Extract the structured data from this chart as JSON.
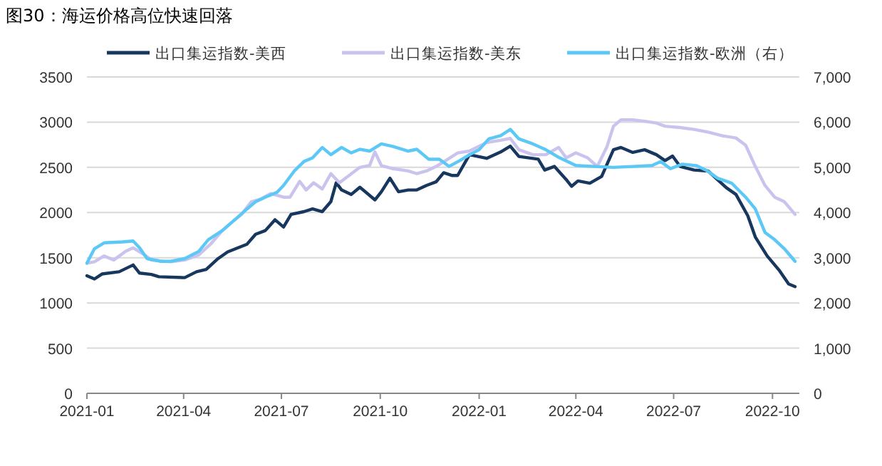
{
  "chart_data": {
    "type": "line",
    "title": "图30：海运价格高位快速回落",
    "legend": "top",
    "grid": "y",
    "xlim": [
      "2021-01-01",
      "2022-10-26"
    ],
    "xticks": [
      "2021-01",
      "2021-04",
      "2021-07",
      "2021-10",
      "2022-01",
      "2022-04",
      "2022-07",
      "2022-10"
    ],
    "ylim": [
      0,
      3500
    ],
    "yticks": [
      0,
      500,
      1000,
      1500,
      2000,
      2500,
      3000,
      3500
    ],
    "y2lim": [
      0,
      7000
    ],
    "y2ticks": [
      0,
      {
        "value": 1000,
        "label": "1,000"
      },
      {
        "value": 2000,
        "label": "2,000"
      },
      {
        "value": 3000,
        "label": "3,000"
      },
      {
        "value": 4000,
        "label": "4,000"
      },
      {
        "value": 5000,
        "label": "5,000"
      },
      {
        "value": 6000,
        "label": "6,000"
      },
      {
        "value": 7000,
        "label": "7,000"
      }
    ],
    "series": [
      {
        "name": "出口集运指数-美西",
        "color": "#17375e",
        "x": [
          "2021-01-01",
          "2021-01-08",
          "2021-01-15",
          "2021-01-31",
          "2021-02-13",
          "2021-02-19",
          "2021-03-02",
          "2021-03-09",
          "2021-04-02",
          "2021-04-13",
          "2021-04-22",
          "2021-05-03",
          "2021-05-12",
          "2021-05-30",
          "2021-06-07",
          "2021-06-16",
          "2021-06-25",
          "2021-07-03",
          "2021-07-10",
          "2021-07-22",
          "2021-07-30",
          "2021-08-08",
          "2021-08-16",
          "2021-08-21",
          "2021-08-26",
          "2021-09-04",
          "2021-09-12",
          "2021-09-26",
          "2021-10-02",
          "2021-10-10",
          "2021-10-18",
          "2021-10-27",
          "2021-11-04",
          "2021-11-13",
          "2021-11-22",
          "2021-11-29",
          "2021-12-07",
          "2021-12-12",
          "2021-12-23",
          "2022-01-08",
          "2022-01-21",
          "2022-01-30",
          "2022-02-07",
          "2022-02-25",
          "2022-03-03",
          "2022-03-12",
          "2022-03-23",
          "2022-03-28",
          "2022-04-03",
          "2022-04-14",
          "2022-04-25",
          "2022-05-06",
          "2022-05-13",
          "2022-05-24",
          "2022-06-04",
          "2022-06-15",
          "2022-06-23",
          "2022-06-30",
          "2022-07-07",
          "2022-07-20",
          "2022-08-02",
          "2022-08-19",
          "2022-08-28",
          "2022-09-08",
          "2022-09-15",
          "2022-09-26",
          "2022-10-07",
          "2022-10-16",
          "2022-10-22"
        ],
        "values": [
          1300,
          1265,
          1320,
          1345,
          1420,
          1330,
          1315,
          1290,
          1280,
          1345,
          1370,
          1490,
          1565,
          1650,
          1760,
          1800,
          1920,
          1840,
          1980,
          2010,
          2040,
          2010,
          2120,
          2330,
          2250,
          2200,
          2280,
          2140,
          2230,
          2380,
          2230,
          2250,
          2250,
          2300,
          2340,
          2440,
          2410,
          2410,
          2640,
          2600,
          2670,
          2735,
          2620,
          2590,
          2470,
          2510,
          2365,
          2290,
          2350,
          2325,
          2400,
          2695,
          2720,
          2665,
          2695,
          2640,
          2575,
          2625,
          2510,
          2470,
          2460,
          2275,
          2200,
          1965,
          1730,
          1520,
          1365,
          1210,
          1180
        ]
      },
      {
        "name": "出口集运指数-美东",
        "color": "#c9c3ee",
        "x": [
          "2021-01-01",
          "2021-01-08",
          "2021-01-17",
          "2021-01-26",
          "2021-02-06",
          "2021-02-13",
          "2021-02-22",
          "2021-03-02",
          "2021-03-13",
          "2021-03-20",
          "2021-04-02",
          "2021-04-15",
          "2021-04-26",
          "2021-05-07",
          "2021-05-16",
          "2021-05-25",
          "2021-06-03",
          "2021-06-12",
          "2021-06-21",
          "2021-07-03",
          "2021-07-09",
          "2021-07-18",
          "2021-07-24",
          "2021-07-31",
          "2021-08-08",
          "2021-08-16",
          "2021-08-24",
          "2021-09-02",
          "2021-09-12",
          "2021-09-21",
          "2021-09-26",
          "2021-10-02",
          "2021-10-13",
          "2021-10-27",
          "2021-11-04",
          "2021-11-13",
          "2021-11-22",
          "2021-12-03",
          "2021-12-12",
          "2021-12-23",
          "2022-01-08",
          "2022-01-21",
          "2022-01-30",
          "2022-02-07",
          "2022-02-20",
          "2022-03-04",
          "2022-03-16",
          "2022-03-23",
          "2022-04-01",
          "2022-04-12",
          "2022-04-21",
          "2022-04-30",
          "2022-05-06",
          "2022-05-13",
          "2022-05-24",
          "2022-06-04",
          "2022-06-15",
          "2022-06-23",
          "2022-07-07",
          "2022-07-20",
          "2022-08-02",
          "2022-08-15",
          "2022-08-28",
          "2022-09-06",
          "2022-09-15",
          "2022-09-24",
          "2022-10-03",
          "2022-10-12",
          "2022-10-22"
        ],
        "values": [
          1440,
          1455,
          1520,
          1475,
          1570,
          1610,
          1545,
          1475,
          1460,
          1455,
          1475,
          1530,
          1650,
          1800,
          1895,
          1980,
          2120,
          2150,
          2210,
          2170,
          2170,
          2345,
          2250,
          2330,
          2260,
          2430,
          2330,
          2410,
          2500,
          2520,
          2670,
          2520,
          2485,
          2460,
          2430,
          2460,
          2510,
          2590,
          2660,
          2680,
          2775,
          2800,
          2820,
          2695,
          2640,
          2640,
          2720,
          2605,
          2660,
          2605,
          2510,
          2730,
          2955,
          3025,
          3025,
          3010,
          2990,
          2955,
          2940,
          2920,
          2890,
          2850,
          2825,
          2745,
          2510,
          2300,
          2170,
          2120,
          1980
        ]
      },
      {
        "name": "出口集运指数-欧洲（右）",
        "color": "#5bc8f5",
        "axis": "y2",
        "x": [
          "2021-01-01",
          "2021-01-08",
          "2021-01-17",
          "2021-02-03",
          "2021-02-13",
          "2021-02-19",
          "2021-02-26",
          "2021-03-11",
          "2021-03-20",
          "2021-04-02",
          "2021-04-15",
          "2021-04-24",
          "2021-05-07",
          "2021-05-20",
          "2021-05-30",
          "2021-06-07",
          "2021-06-16",
          "2021-06-27",
          "2021-07-03",
          "2021-07-13",
          "2021-07-22",
          "2021-07-30",
          "2021-08-08",
          "2021-08-16",
          "2021-08-26",
          "2021-09-04",
          "2021-09-12",
          "2021-09-21",
          "2021-10-02",
          "2021-10-13",
          "2021-10-27",
          "2021-11-04",
          "2021-11-15",
          "2021-11-25",
          "2021-12-04",
          "2021-12-14",
          "2021-12-23",
          "2022-01-01",
          "2022-01-10",
          "2022-01-21",
          "2022-01-30",
          "2022-02-07",
          "2022-02-20",
          "2022-03-04",
          "2022-03-17",
          "2022-04-01",
          "2022-04-18",
          "2022-05-06",
          "2022-05-24",
          "2022-06-11",
          "2022-06-19",
          "2022-06-28",
          "2022-07-09",
          "2022-07-22",
          "2022-07-31",
          "2022-08-11",
          "2022-08-24",
          "2022-09-06",
          "2022-09-15",
          "2022-09-24",
          "2022-10-03",
          "2022-10-12",
          "2022-10-22"
        ],
        "values": [
          2880,
          3200,
          3330,
          3350,
          3370,
          3220,
          2980,
          2920,
          2920,
          2980,
          3140,
          3400,
          3600,
          3870,
          4080,
          4240,
          4340,
          4450,
          4600,
          4920,
          5130,
          5210,
          5440,
          5280,
          5440,
          5320,
          5400,
          5360,
          5520,
          5460,
          5360,
          5400,
          5180,
          5180,
          5020,
          5150,
          5280,
          5390,
          5630,
          5700,
          5840,
          5630,
          5520,
          5390,
          5210,
          5040,
          5020,
          5000,
          5020,
          5040,
          5130,
          4970,
          5070,
          5040,
          4940,
          4760,
          4650,
          4340,
          4080,
          3560,
          3400,
          3200,
          2920
        ]
      }
    ]
  }
}
